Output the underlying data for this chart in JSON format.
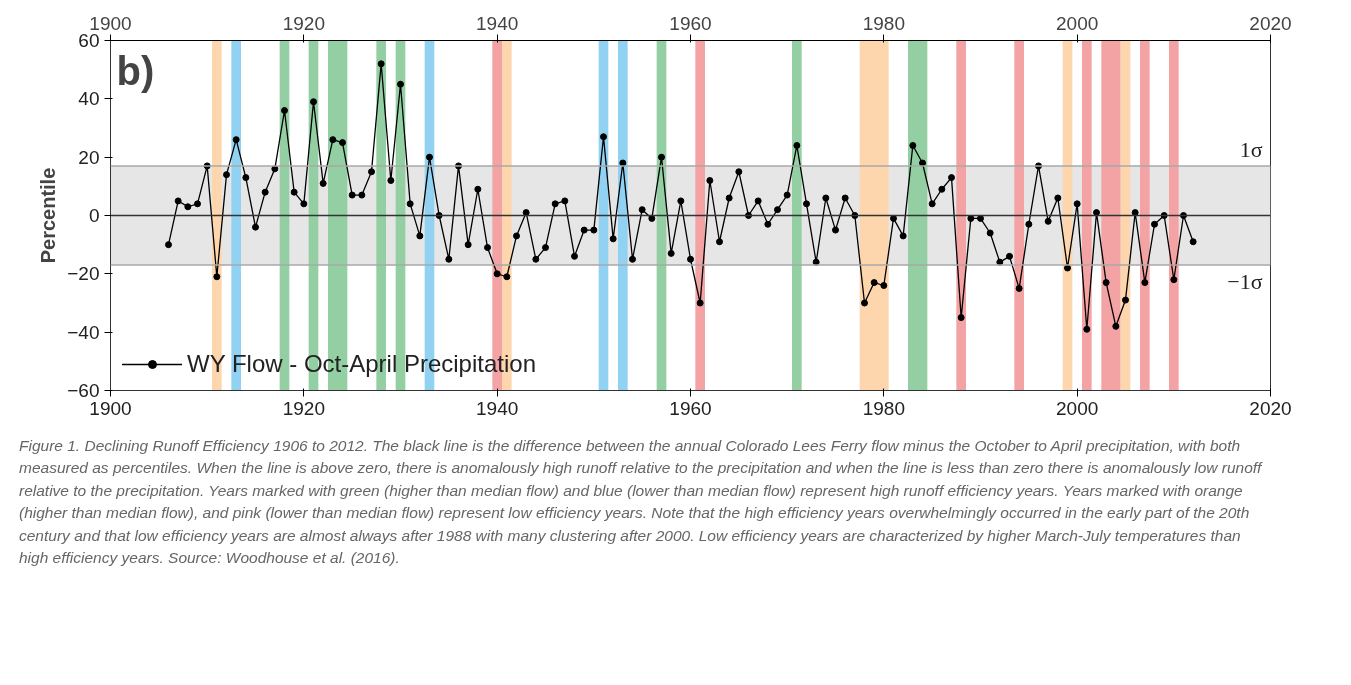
{
  "chart_data": {
    "type": "line",
    "ylabel": "Percentile",
    "x": [
      1906,
      1907,
      1908,
      1909,
      1910,
      1911,
      1912,
      1913,
      1914,
      1915,
      1916,
      1917,
      1918,
      1919,
      1920,
      1921,
      1922,
      1923,
      1924,
      1925,
      1926,
      1927,
      1928,
      1929,
      1930,
      1931,
      1932,
      1933,
      1934,
      1935,
      1936,
      1937,
      1938,
      1939,
      1940,
      1941,
      1942,
      1943,
      1944,
      1945,
      1946,
      1947,
      1948,
      1949,
      1950,
      1951,
      1952,
      1953,
      1954,
      1955,
      1956,
      1957,
      1958,
      1959,
      1960,
      1961,
      1962,
      1963,
      1964,
      1965,
      1966,
      1967,
      1968,
      1969,
      1970,
      1971,
      1972,
      1973,
      1974,
      1975,
      1976,
      1977,
      1978,
      1979,
      1980,
      1981,
      1982,
      1983,
      1984,
      1985,
      1986,
      1987,
      1988,
      1989,
      1990,
      1991,
      1992,
      1993,
      1994,
      1995,
      1996,
      1997,
      1998,
      1999,
      2000,
      2001,
      2002,
      2003,
      2004,
      2005,
      2006,
      2007,
      2008,
      2009,
      2010,
      2011,
      2012
    ],
    "series": [
      {
        "name": "WY Flow - Oct-April Precipitation",
        "color": "#000000",
        "values": [
          -10,
          5,
          3,
          4,
          17,
          -21,
          14,
          26,
          13,
          -4,
          8,
          16,
          36,
          8,
          4,
          39,
          11,
          26,
          25,
          7,
          7,
          15,
          52,
          12,
          45,
          4,
          -7,
          20,
          0,
          -15,
          17,
          -10,
          9,
          -11,
          -20,
          -21,
          -7,
          1,
          -15,
          -11,
          4,
          5,
          -14,
          -5,
          -5,
          27,
          -8,
          18,
          -15,
          2,
          -1,
          20,
          -13,
          5,
          -15,
          -30,
          12,
          -9,
          6,
          15,
          0,
          5,
          -3,
          2,
          7,
          24,
          4,
          -16,
          6,
          -5,
          6,
          0,
          -30,
          -23,
          -24,
          -1,
          -7,
          24,
          18,
          4,
          9,
          13,
          -35,
          -1,
          -1,
          -6,
          -16,
          -14,
          -25,
          -3,
          17,
          -2,
          6,
          -18,
          4,
          -39,
          1,
          -23,
          -38,
          -29,
          1,
          -23,
          -3,
          0,
          -22,
          0,
          -9
        ]
      }
    ],
    "xlim": [
      1900,
      2020
    ],
    "xticks": [
      1900,
      1920,
      1940,
      1960,
      1980,
      2000,
      2020
    ],
    "x2lim": [
      1900,
      2020
    ],
    "x2ticks": [
      1900,
      1920,
      1940,
      1960,
      1980,
      2000,
      2020
    ],
    "ylim": [
      -60,
      60
    ],
    "yticks": [
      -60,
      -40,
      -20,
      0,
      20,
      40,
      60
    ],
    "marker": "circle",
    "line_style": "solid",
    "grid": false,
    "legend": "bottom left",
    "ref_lines": [
      {
        "axis": "y",
        "value": 0,
        "color": "#333333"
      },
      {
        "axis": "y",
        "value": 17,
        "label": "1σ",
        "color": "#a8a8a8"
      },
      {
        "axis": "y",
        "value": -17,
        "label": "−1σ",
        "color": "#a8a8a8"
      }
    ],
    "bands": [
      {
        "axis": "y",
        "from": -17,
        "to": 17,
        "color": "#e6e6e6"
      },
      {
        "axis": "x",
        "from": 1910.5,
        "to": 1911.5,
        "color": "#fdd6ad"
      },
      {
        "axis": "x",
        "from": 1912.5,
        "to": 1913.5,
        "color": "#91d2f2"
      },
      {
        "axis": "x",
        "from": 1917.5,
        "to": 1918.5,
        "color": "#93cfa3"
      },
      {
        "axis": "x",
        "from": 1920.5,
        "to": 1921.5,
        "color": "#93cfa3"
      },
      {
        "axis": "x",
        "from": 1922.5,
        "to": 1924.5,
        "color": "#93cfa3"
      },
      {
        "axis": "x",
        "from": 1927.5,
        "to": 1928.5,
        "color": "#93cfa3"
      },
      {
        "axis": "x",
        "from": 1929.5,
        "to": 1930.5,
        "color": "#93cfa3"
      },
      {
        "axis": "x",
        "from": 1932.5,
        "to": 1933.5,
        "color": "#91d2f2"
      },
      {
        "axis": "x",
        "from": 1939.5,
        "to": 1940.5,
        "color": "#f3a3a3"
      },
      {
        "axis": "x",
        "from": 1940.5,
        "to": 1941.5,
        "color": "#fdd6ad"
      },
      {
        "axis": "x",
        "from": 1950.5,
        "to": 1951.5,
        "color": "#91d2f2"
      },
      {
        "axis": "x",
        "from": 1952.5,
        "to": 1953.5,
        "color": "#91d2f2"
      },
      {
        "axis": "x",
        "from": 1956.5,
        "to": 1957.5,
        "color": "#93cfa3"
      },
      {
        "axis": "x",
        "from": 1960.5,
        "to": 1961.5,
        "color": "#f3a3a3"
      },
      {
        "axis": "x",
        "from": 1970.5,
        "to": 1971.5,
        "color": "#93cfa3"
      },
      {
        "axis": "x",
        "from": 1977.5,
        "to": 1980.5,
        "color": "#fdd6ad"
      },
      {
        "axis": "x",
        "from": 1982.5,
        "to": 1984.5,
        "color": "#93cfa3"
      },
      {
        "axis": "x",
        "from": 1987.5,
        "to": 1988.5,
        "color": "#f3a3a3"
      },
      {
        "axis": "x",
        "from": 1993.5,
        "to": 1994.5,
        "color": "#f3a3a3"
      },
      {
        "axis": "x",
        "from": 1998.5,
        "to": 1999.5,
        "color": "#fdd6ad"
      },
      {
        "axis": "x",
        "from": 2000.5,
        "to": 2001.5,
        "color": "#f3a3a3"
      },
      {
        "axis": "x",
        "from": 2002.5,
        "to": 2004.5,
        "color": "#f3a3a3"
      },
      {
        "axis": "x",
        "from": 2004.5,
        "to": 2005.5,
        "color": "#fdd6ad"
      },
      {
        "axis": "x",
        "from": 2006.5,
        "to": 2007.5,
        "color": "#f3a3a3"
      },
      {
        "axis": "x",
        "from": 2009.5,
        "to": 2010.5,
        "color": "#f3a3a3"
      }
    ],
    "annotations": [
      "b)",
      "Figure 1. Declining Runoff Efficiency 1906 to 2012. The black line is the difference between the annual Colorado Lees Ferry flow minus the October to April precipitation, with both measured as percentiles. When the line is above zero, there is anomalously high runoff relative to the precipitation and when the line is less than zero there is anomalously low runoff relative to the precipitation. Years marked with green (higher than median flow) and blue (lower than median flow) represent high runoff efficiency years. Years marked with orange (higher than median flow), and pink (lower than median flow) represent low efficiency years. Note that the high efficiency years overwhelmingly occurred in the early part of the 20th century and that low efficiency years are almost always after 1988 with many clustering after 2000. Low efficiency years are characterized by higher March-July temperatures than high efficiency years. Source: Woodhouse et al. (2016)."
    ]
  }
}
